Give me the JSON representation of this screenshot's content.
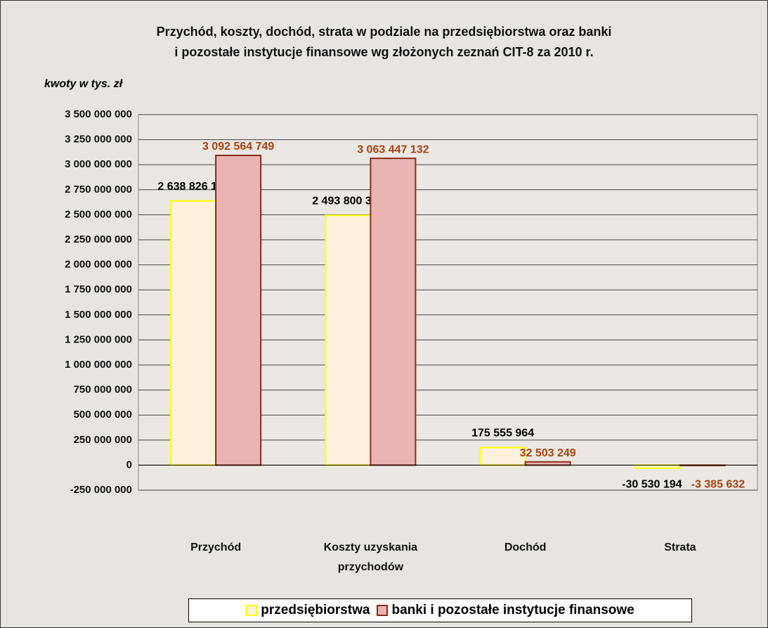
{
  "chart_data": {
    "type": "bar",
    "title": [
      "Przychód, koszty, dochód, strata w podziale na przedsiębiorstwa oraz banki",
      "i pozostałe instytucje finansowe wg złożonych zeznań CIT-8 za 2010 r."
    ],
    "y_label": "kwoty w tys. zł",
    "categories": [
      "Przychód",
      "Koszty uzyskania przychodów",
      "Dochód",
      "Strata"
    ],
    "series": [
      {
        "name": "przedsiębiorstwa",
        "color": "#fdf1dc",
        "edge_color": "#ffff00",
        "label_color": "#000000",
        "values": [
          2638826116,
          2493800346,
          175555964,
          -30530194
        ],
        "value_labels": [
          "2 638 826 116",
          "2 493 800 346",
          "175 555 964",
          "-30 530 194"
        ]
      },
      {
        "name": "banki i pozostałe instytucje finansowe",
        "color": "#e8b5b3",
        "edge_color": "#8b2a16",
        "label_color": "#a8420f",
        "values": [
          3092564749,
          3063447132,
          32503249,
          -3385632
        ],
        "value_labels": [
          "3 092 564 749",
          "3 063 447 132",
          "32 503 249",
          "-3 385 632"
        ]
      }
    ],
    "ylim": [
      -250000000,
      3500000000
    ],
    "yticks": [
      {
        "value": -250000000,
        "label": "-250 000 000"
      },
      0,
      {
        "value": 250000000,
        "label": "250 000 000"
      },
      {
        "value": 500000000,
        "label": "500 000 000"
      },
      {
        "value": 750000000,
        "label": "750 000 000"
      },
      {
        "value": 1000000000,
        "label": "1 000 000 000"
      },
      {
        "value": 1250000000,
        "label": "1 250 000 000"
      },
      {
        "value": 1500000000,
        "label": "1 500 000 000"
      },
      {
        "value": 1750000000,
        "label": "1 750 000 000"
      },
      {
        "value": 2000000000,
        "label": "2 000 000 000"
      },
      {
        "value": 2250000000,
        "label": "2 250 000 000"
      },
      {
        "value": 2500000000,
        "label": "2 500 000 000"
      },
      {
        "value": 2750000000,
        "label": "2 750 000 000"
      },
      {
        "value": 3000000000,
        "label": "3 000 000 000"
      },
      {
        "value": 3250000000,
        "label": "3 250 000 000"
      },
      {
        "value": 3500000000,
        "label": "3 500 000 000"
      }
    ],
    "grid": true,
    "legend": "bottom"
  }
}
